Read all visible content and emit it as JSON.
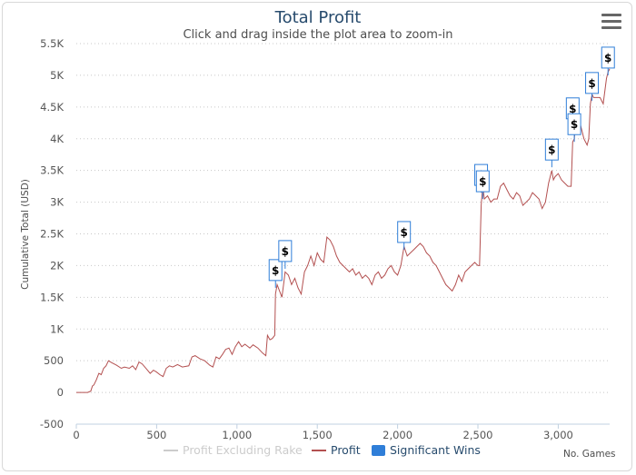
{
  "chart": {
    "title": "Total Profit",
    "subtitle": "Click and drag inside the plot area to zoom-in",
    "menu_icon": "hamburger-menu-icon"
  },
  "chart_data": {
    "type": "line",
    "title": "Total Profit",
    "subtitle": "Click and drag inside the plot area to zoom-in",
    "xlabel": "No. Games",
    "ylabel": "Cumulative Total (USD)",
    "xlim": [
      0,
      3320
    ],
    "ylim": [
      -500,
      5500
    ],
    "x_ticks": [
      0,
      500,
      1000,
      1500,
      2000,
      2500,
      3000
    ],
    "x_tick_labels": [
      "0",
      "500",
      "1,000",
      "1,500",
      "2,000",
      "2,500",
      "3,000"
    ],
    "y_ticks": [
      -500,
      0,
      500,
      1000,
      1500,
      2000,
      2500,
      3000,
      3500,
      4000,
      4500,
      5000,
      5500
    ],
    "y_tick_labels": [
      "-500",
      "0",
      "500",
      "1K",
      "1.5K",
      "2K",
      "2.5K",
      "3K",
      "3.5K",
      "4K",
      "4.5K",
      "5K",
      "5.5K"
    ],
    "grid": "horizontal-dotted",
    "legend_position": "bottom",
    "legend": [
      {
        "name": "Profit Excluding Rake",
        "color": "#cccccc",
        "type": "line",
        "visible": false
      },
      {
        "name": "Profit",
        "color": "#b35050",
        "type": "line",
        "visible": true
      },
      {
        "name": "Significant Wins",
        "color": "#2f7ed8",
        "type": "flag",
        "visible": true
      }
    ],
    "series": [
      {
        "name": "Profit",
        "color": "#b35050",
        "points": [
          [
            0,
            0
          ],
          [
            40,
            0
          ],
          [
            70,
            0
          ],
          [
            90,
            20
          ],
          [
            100,
            100
          ],
          [
            110,
            120
          ],
          [
            125,
            200
          ],
          [
            140,
            300
          ],
          [
            155,
            280
          ],
          [
            170,
            380
          ],
          [
            185,
            420
          ],
          [
            200,
            500
          ],
          [
            220,
            470
          ],
          [
            250,
            430
          ],
          [
            280,
            380
          ],
          [
            300,
            400
          ],
          [
            330,
            380
          ],
          [
            350,
            420
          ],
          [
            370,
            360
          ],
          [
            390,
            480
          ],
          [
            410,
            450
          ],
          [
            440,
            360
          ],
          [
            460,
            300
          ],
          [
            480,
            350
          ],
          [
            500,
            320
          ],
          [
            520,
            280
          ],
          [
            540,
            250
          ],
          [
            560,
            380
          ],
          [
            580,
            420
          ],
          [
            600,
            400
          ],
          [
            630,
            440
          ],
          [
            660,
            400
          ],
          [
            700,
            420
          ],
          [
            720,
            560
          ],
          [
            740,
            580
          ],
          [
            770,
            530
          ],
          [
            800,
            500
          ],
          [
            830,
            430
          ],
          [
            850,
            400
          ],
          [
            870,
            560
          ],
          [
            890,
            530
          ],
          [
            910,
            600
          ],
          [
            930,
            680
          ],
          [
            950,
            700
          ],
          [
            970,
            600
          ],
          [
            990,
            720
          ],
          [
            1010,
            800
          ],
          [
            1030,
            720
          ],
          [
            1050,
            760
          ],
          [
            1080,
            700
          ],
          [
            1100,
            750
          ],
          [
            1130,
            700
          ],
          [
            1160,
            620
          ],
          [
            1180,
            580
          ],
          [
            1190,
            900
          ],
          [
            1205,
            830
          ],
          [
            1220,
            850
          ],
          [
            1235,
            900
          ],
          [
            1240,
            1550
          ],
          [
            1250,
            1700
          ],
          [
            1265,
            1600
          ],
          [
            1280,
            1500
          ],
          [
            1290,
            1700
          ],
          [
            1300,
            1900
          ],
          [
            1320,
            1850
          ],
          [
            1340,
            1700
          ],
          [
            1360,
            1800
          ],
          [
            1380,
            1650
          ],
          [
            1400,
            1550
          ],
          [
            1420,
            1900
          ],
          [
            1440,
            2000
          ],
          [
            1460,
            2150
          ],
          [
            1480,
            2000
          ],
          [
            1500,
            2200
          ],
          [
            1520,
            2100
          ],
          [
            1540,
            2050
          ],
          [
            1560,
            2450
          ],
          [
            1580,
            2400
          ],
          [
            1600,
            2300
          ],
          [
            1620,
            2150
          ],
          [
            1640,
            2050
          ],
          [
            1660,
            2000
          ],
          [
            1680,
            1950
          ],
          [
            1700,
            1900
          ],
          [
            1720,
            1950
          ],
          [
            1740,
            1850
          ],
          [
            1760,
            1900
          ],
          [
            1780,
            1800
          ],
          [
            1800,
            1850
          ],
          [
            1820,
            1800
          ],
          [
            1840,
            1700
          ],
          [
            1860,
            1850
          ],
          [
            1880,
            1900
          ],
          [
            1900,
            1800
          ],
          [
            1920,
            1850
          ],
          [
            1940,
            1950
          ],
          [
            1960,
            2000
          ],
          [
            1980,
            1900
          ],
          [
            2000,
            1850
          ],
          [
            2020,
            2000
          ],
          [
            2040,
            2300
          ],
          [
            2060,
            2150
          ],
          [
            2080,
            2200
          ],
          [
            2100,
            2250
          ],
          [
            2120,
            2300
          ],
          [
            2140,
            2350
          ],
          [
            2160,
            2300
          ],
          [
            2180,
            2200
          ],
          [
            2200,
            2150
          ],
          [
            2220,
            2050
          ],
          [
            2240,
            2000
          ],
          [
            2260,
            1900
          ],
          [
            2280,
            1800
          ],
          [
            2300,
            1700
          ],
          [
            2320,
            1650
          ],
          [
            2340,
            1600
          ],
          [
            2360,
            1700
          ],
          [
            2380,
            1850
          ],
          [
            2400,
            1750
          ],
          [
            2420,
            1900
          ],
          [
            2440,
            1950
          ],
          [
            2460,
            2000
          ],
          [
            2480,
            2050
          ],
          [
            2500,
            2000
          ],
          [
            2510,
            2000
          ],
          [
            2520,
            2950
          ],
          [
            2530,
            3250
          ],
          [
            2540,
            3050
          ],
          [
            2560,
            3100
          ],
          [
            2580,
            3000
          ],
          [
            2600,
            3050
          ],
          [
            2620,
            3050
          ],
          [
            2640,
            3250
          ],
          [
            2660,
            3300
          ],
          [
            2680,
            3200
          ],
          [
            2700,
            3100
          ],
          [
            2720,
            3050
          ],
          [
            2740,
            3150
          ],
          [
            2760,
            3100
          ],
          [
            2780,
            2950
          ],
          [
            2800,
            3000
          ],
          [
            2820,
            3050
          ],
          [
            2840,
            3150
          ],
          [
            2860,
            3100
          ],
          [
            2880,
            3050
          ],
          [
            2900,
            2900
          ],
          [
            2920,
            3000
          ],
          [
            2940,
            3300
          ],
          [
            2960,
            3500
          ],
          [
            2970,
            3350
          ],
          [
            2980,
            3400
          ],
          [
            3000,
            3450
          ],
          [
            3020,
            3350
          ],
          [
            3040,
            3300
          ],
          [
            3060,
            3250
          ],
          [
            3080,
            3250
          ],
          [
            3090,
            3950
          ],
          [
            3100,
            4000
          ],
          [
            3110,
            4300
          ],
          [
            3120,
            4200
          ],
          [
            3140,
            4200
          ],
          [
            3160,
            4000
          ],
          [
            3180,
            3900
          ],
          [
            3190,
            4000
          ],
          [
            3200,
            4550
          ],
          [
            3210,
            4700
          ],
          [
            3220,
            4650
          ],
          [
            3240,
            4650
          ],
          [
            3260,
            4650
          ],
          [
            3280,
            4550
          ],
          [
            3300,
            4950
          ],
          [
            3310,
            5050
          ],
          [
            3320,
            5100
          ]
        ]
      }
    ],
    "flags": [
      {
        "x": 1240,
        "y": 1650,
        "text": "$"
      },
      {
        "x": 1300,
        "y": 1950,
        "text": "$"
      },
      {
        "x": 2040,
        "y": 2250,
        "text": "$"
      },
      {
        "x": 2520,
        "y": 3150,
        "text": "$"
      },
      {
        "x": 2530,
        "y": 3050,
        "text": "$"
      },
      {
        "x": 2960,
        "y": 3550,
        "text": "$"
      },
      {
        "x": 3090,
        "y": 4200,
        "text": "$"
      },
      {
        "x": 3100,
        "y": 3950,
        "text": "$"
      },
      {
        "x": 3210,
        "y": 4600,
        "text": "$"
      },
      {
        "x": 3310,
        "y": 5000,
        "text": "$"
      }
    ]
  }
}
